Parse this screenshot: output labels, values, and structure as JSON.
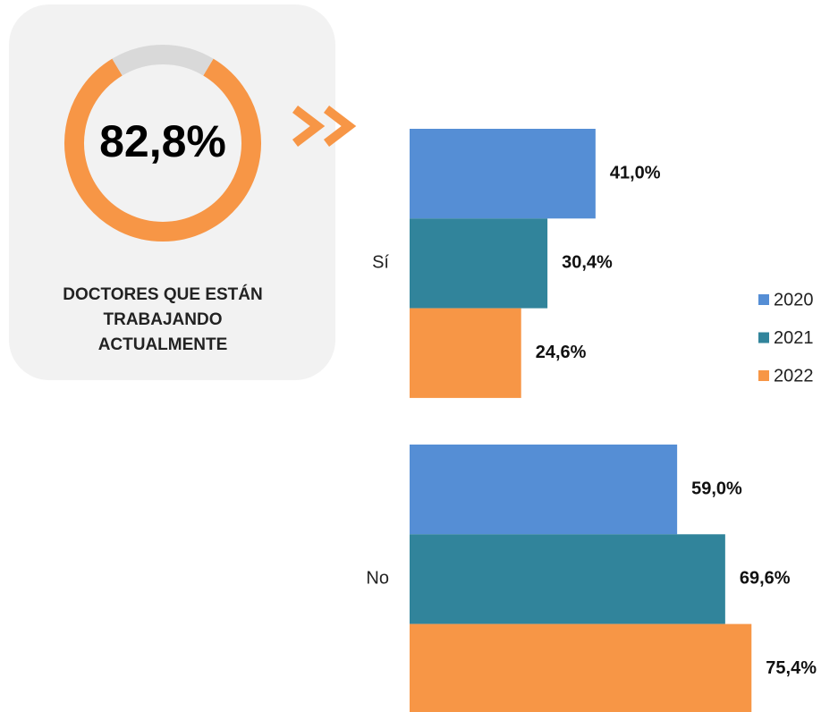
{
  "chart_data": [
    {
      "type": "donut",
      "values": [
        82.8,
        17.2
      ],
      "colors": [
        "#f79646",
        "#d9d9d9"
      ],
      "center_label": "82,8%",
      "caption": "DOCTORES QUE ESTÁN TRABAJANDO ACTUALMENTE"
    },
    {
      "type": "hbar",
      "categories": [
        "Sí",
        "No"
      ],
      "xlim": [
        0,
        100
      ],
      "series": [
        {
          "name": "2020",
          "color": "#558ed5",
          "values": [
            41.0,
            59.0
          ],
          "value_labels": [
            "41,0%",
            "59,0%"
          ]
        },
        {
          "name": "2021",
          "color": "#31849b",
          "values": [
            30.4,
            69.6
          ],
          "value_labels": [
            "30,4%",
            "69,6%"
          ]
        },
        {
          "name": "2022",
          "color": "#f79646",
          "values": [
            24.6,
            75.4
          ],
          "value_labels": [
            "24,6%",
            "75,4%"
          ]
        }
      ]
    }
  ]
}
